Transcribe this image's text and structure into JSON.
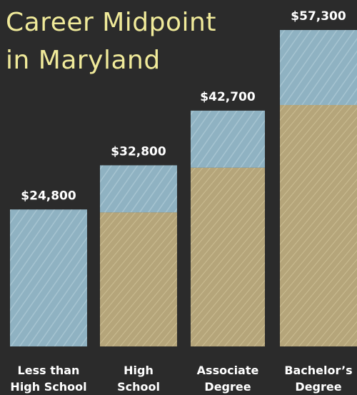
{
  "title_lines": [
    "Career Midpoint",
    "in Maryland"
  ],
  "colors": {
    "background": "#2b2b2b",
    "blue": "#8fb2c2",
    "tan": "#b5a57a",
    "title": "#f0ea9a",
    "label": "#ffffff"
  },
  "chart_data": {
    "type": "bar",
    "title": "Career Midpoint in Maryland",
    "categories": [
      [
        "Less than",
        "High School"
      ],
      [
        "High",
        "School"
      ],
      [
        "Associate",
        "Degree"
      ],
      [
        "Bachelor’s",
        "Degree"
      ]
    ],
    "values": [
      24800,
      32800,
      42700,
      57300
    ],
    "value_labels": [
      "$24,800",
      "$32,800",
      "$42,700",
      "$57,300"
    ],
    "ylim": [
      0,
      57300
    ],
    "grid": false,
    "legend": "none"
  }
}
